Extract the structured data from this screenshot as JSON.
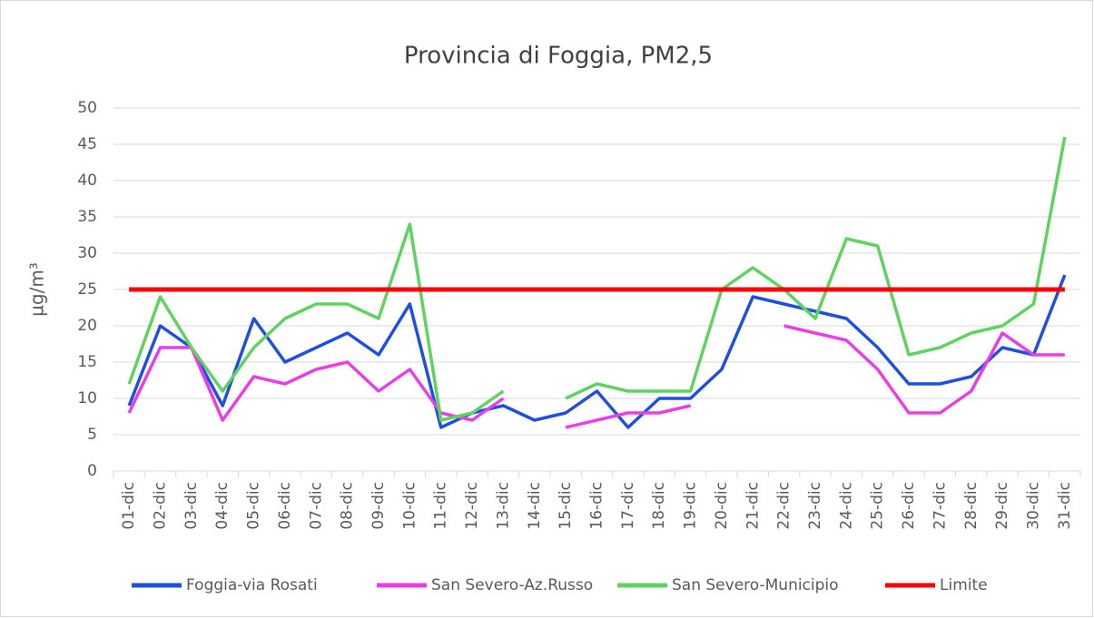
{
  "chart_data": {
    "type": "line",
    "title": "Provincia di Foggia, PM2,5",
    "y_label": "µg/m³",
    "categories": [
      "01-dic",
      "02-dic",
      "03-dic",
      "04-dic",
      "05-dic",
      "06-dic",
      "07-dic",
      "08-dic",
      "09-dic",
      "10-dic",
      "11-dic",
      "12-dic",
      "13-dic",
      "14-dic",
      "15-dic",
      "16-dic",
      "17-dic",
      "18-dic",
      "19-dic",
      "20-dic",
      "21-dic",
      "22-dic",
      "23-dic",
      "24-dic",
      "25-dic",
      "26-dic",
      "27-dic",
      "28-dic",
      "29-dic",
      "30-dic",
      "31-dic"
    ],
    "series": [
      {
        "name": "Foggia-via Rosati",
        "color": "#1f4fe0",
        "values": [
          9,
          20,
          17,
          9,
          21,
          15,
          17,
          19,
          16,
          23,
          6,
          8,
          9,
          7,
          8,
          11,
          6,
          10,
          10,
          14,
          24,
          23,
          22,
          21,
          17,
          12,
          12,
          13,
          17,
          16,
          27
        ]
      },
      {
        "name": "San Severo-Az.Russo",
        "color": "#e83ee8",
        "values": [
          8,
          17,
          17,
          7,
          13,
          12,
          14,
          15,
          11,
          14,
          8,
          7,
          10,
          null,
          6,
          7,
          8,
          8,
          9,
          null,
          null,
          20,
          19,
          18,
          14,
          8,
          8,
          11,
          19,
          16,
          16
        ]
      },
      {
        "name": "San Severo-Municipio",
        "color": "#5fd35f",
        "values": [
          12,
          24,
          17,
          11,
          17,
          21,
          23,
          23,
          21,
          34,
          7,
          8,
          11,
          null,
          10,
          12,
          11,
          11,
          11,
          25,
          28,
          25,
          21,
          32,
          31,
          16,
          17,
          19,
          20,
          23,
          46
        ]
      },
      {
        "name": "Limite",
        "color": "#ff0000",
        "values": [
          25,
          25,
          25,
          25,
          25,
          25,
          25,
          25,
          25,
          25,
          25,
          25,
          25,
          25,
          25,
          25,
          25,
          25,
          25,
          25,
          25,
          25,
          25,
          25,
          25,
          25,
          25,
          25,
          25,
          25,
          25
        ]
      }
    ],
    "ylim": [
      0,
      50
    ],
    "yticks": [
      0,
      5,
      10,
      15,
      20,
      25,
      30,
      35,
      40,
      45,
      50
    ],
    "grid": true,
    "legend": "bottom"
  }
}
